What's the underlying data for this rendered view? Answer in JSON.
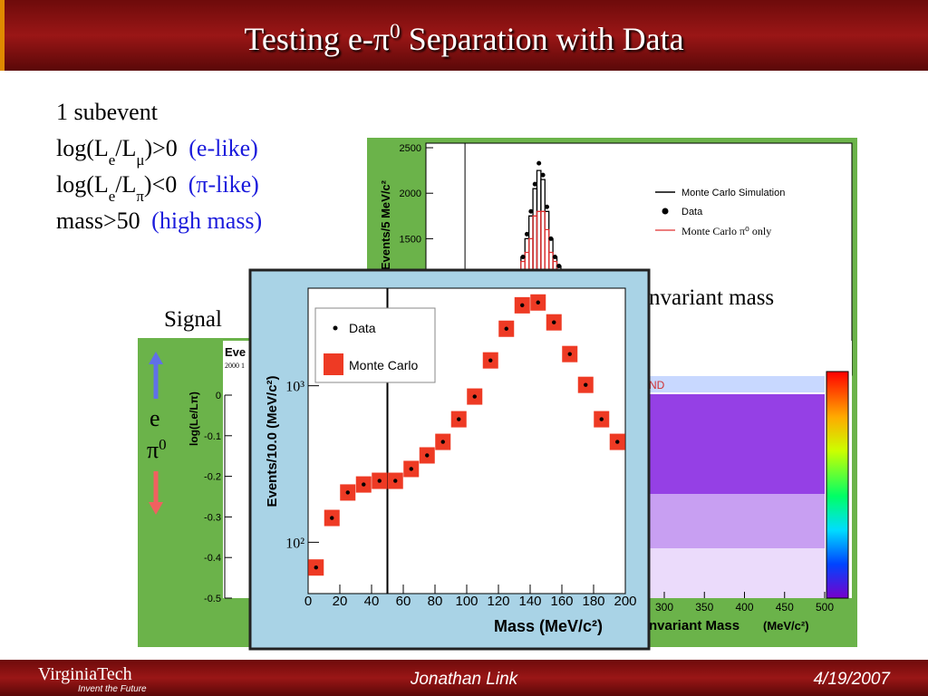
{
  "header": {
    "title": [
      {
        "text": "Testing e-π"
      },
      {
        "text": "0",
        "sup": true
      },
      {
        "text": " Separation with Data"
      }
    ]
  },
  "bullets": [
    {
      "parts": [
        {
          "text": "1 subevent"
        }
      ]
    },
    {
      "parts": [
        {
          "text": "log(L"
        },
        {
          "text": "e",
          "sub": true
        },
        {
          "text": "/L"
        },
        {
          "text": "μ",
          "sub": true
        },
        {
          "text": ")>0 "
        }
      ],
      "note": "(e-like)"
    },
    {
      "parts": [
        {
          "text": "log(L"
        },
        {
          "text": "e",
          "sub": true
        },
        {
          "text": "/L"
        },
        {
          "text": "π",
          "sub": true
        },
        {
          "text": ")<0 "
        }
      ],
      "note": "(π-like)"
    },
    {
      "parts": [
        {
          "text": "mass>50 "
        }
      ],
      "note": "(high mass)"
    }
  ],
  "labels": {
    "signal": "Signal",
    "invariant": "nvariant mass",
    "e": "e",
    "pi": [
      {
        "text": "π"
      },
      {
        "text": "0",
        "sup": true
      }
    ],
    "nd": "ND"
  },
  "footer": {
    "logo": "VirginiaTech",
    "tagline": "Invent the Future",
    "author": "Jonathan Link",
    "date": "4/19/2007"
  },
  "chart_data": [
    {
      "type": "scatter",
      "xlabel": "Mass (MeV/c²)",
      "ylabel": "Events/10.0 (MeV/c²)",
      "log_y": true,
      "x": [
        5,
        15,
        25,
        35,
        45,
        55,
        65,
        75,
        85,
        95,
        105,
        115,
        125,
        135,
        145,
        155,
        165,
        175,
        185,
        195
      ],
      "series": [
        {
          "name": "Data",
          "color": "#000000",
          "values": [
            69,
            143,
            208,
            234,
            247,
            247,
            294,
            359,
            438,
            611,
            853,
            1452,
            2313,
            3266,
            3404,
            2541,
            1594,
            1013,
            611,
            438
          ]
        },
        {
          "name": "Monte Carlo",
          "color": "#ee3a24",
          "values": [
            69,
            143,
            208,
            234,
            247,
            247,
            294,
            359,
            438,
            611,
            853,
            1452,
            2313,
            3266,
            3404,
            2541,
            1594,
            1013,
            611,
            438
          ]
        }
      ],
      "cut": 50,
      "xlim": [
        0,
        200
      ],
      "xticks": [
        0,
        20,
        40,
        60,
        80,
        100,
        120,
        140,
        160,
        180,
        200
      ],
      "ylim": [
        47,
        4200
      ],
      "yticks": [
        {
          "value": 100,
          "label": "10²"
        },
        {
          "value": 1000,
          "label": "10³"
        }
      ]
    },
    {
      "type": "histogram",
      "ylabel": "Events/5 MeV/c²",
      "bins": [
        120,
        125,
        130,
        135,
        140,
        145,
        150,
        155,
        160,
        165,
        170
      ],
      "series": [
        {
          "name": "Monte Carlo Simulation",
          "color": "#000000",
          "values": [
            1300,
            1500,
            1750,
            2050,
            2250,
            2150,
            1800,
            1500,
            1300,
            1200
          ]
        },
        {
          "name": "Data",
          "color": "#000000",
          "values": [
            1300,
            1550,
            1800,
            2100,
            2330,
            2200,
            1850,
            1500,
            1300,
            1200
          ]
        },
        {
          "name": "Monte Carlo π⁰ only",
          "color": "#e03030",
          "values": [
            1250,
            1350,
            1500,
            1750,
            1800,
            1800,
            1600,
            1350,
            1250,
            1150
          ]
        }
      ],
      "cut": 50,
      "xlim": [
        0,
        500
      ],
      "ylim": [
        0,
        2550
      ],
      "yticks": [
        1500,
        2000,
        2500
      ]
    },
    {
      "type": "scatter",
      "title": "Eve",
      "subtitle": "2000 1",
      "ylabel": "log(Le/Lπ)",
      "ylim": [
        -0.5,
        0
      ],
      "yticks": [
        0,
        -0.1,
        -0.2,
        -0.3,
        -0.4,
        -0.5
      ]
    },
    {
      "type": "heatmap",
      "xlabel": "nvariant Mass",
      "xunit": "(MeV/c²)",
      "xlim": [
        300,
        500
      ],
      "xticks": [
        300,
        350,
        400,
        450,
        500
      ]
    }
  ]
}
